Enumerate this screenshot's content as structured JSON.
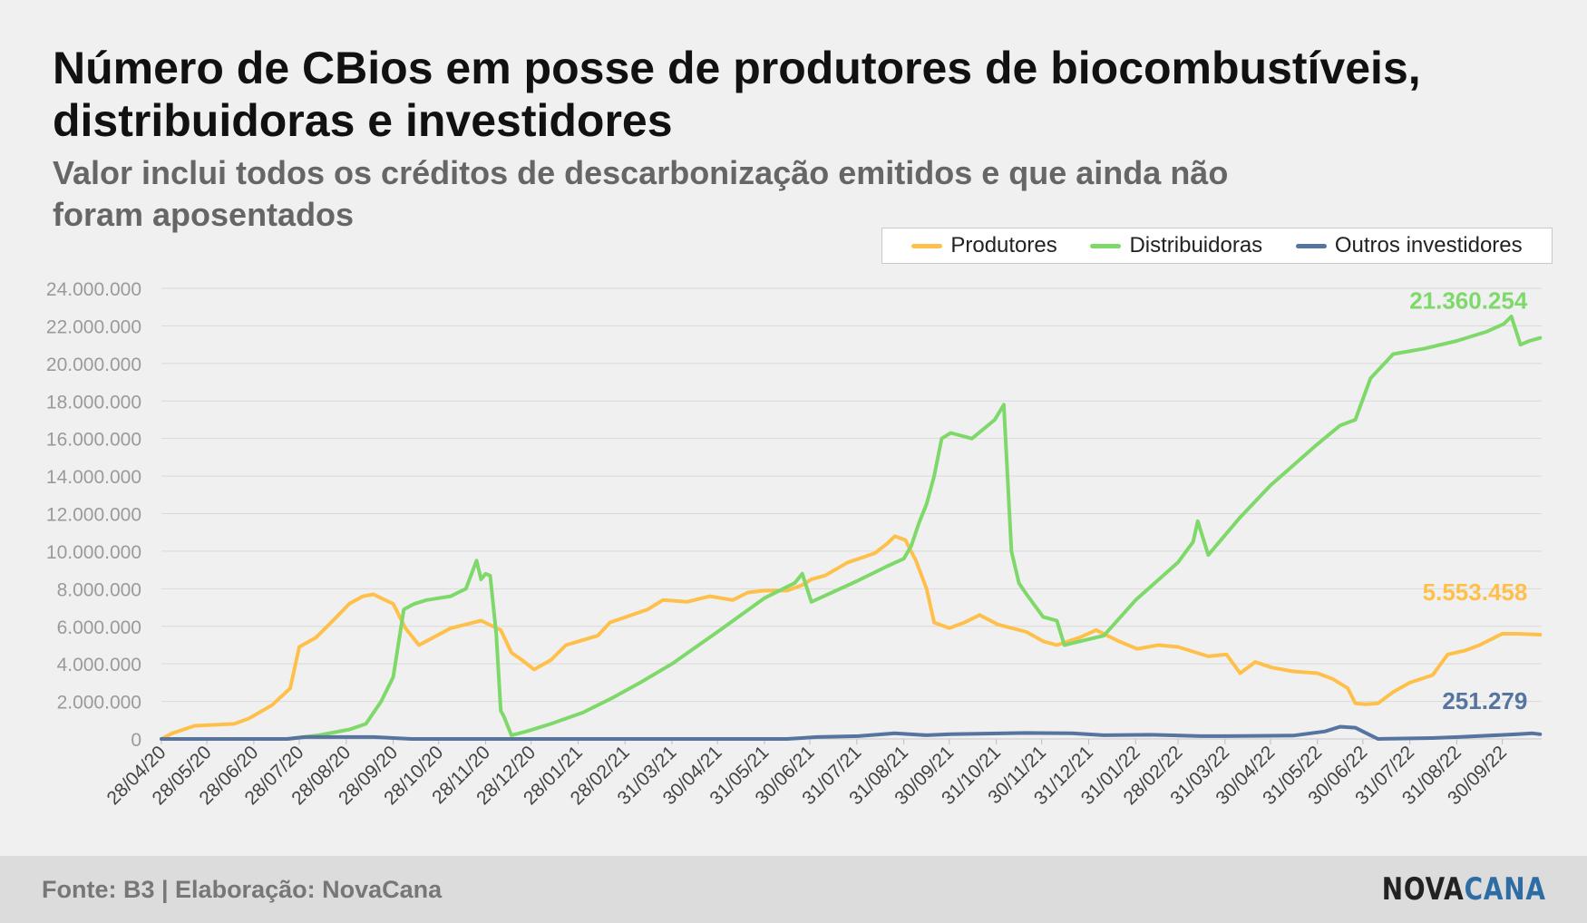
{
  "header": {
    "title": "Número de CBios em posse de produtores de biocombustíveis, distribuidoras e investidores",
    "subtitle": "Valor inclui todos os créditos de descarbonização emitidos e que ainda não foram aposentados"
  },
  "footer": {
    "source": "Fonte: B3 | Elaboração: NovaCana",
    "logo_part1": "NOVA",
    "logo_part2": "CANA"
  },
  "chart_data": {
    "type": "line",
    "title": "Número de CBios em posse de produtores de biocombustíveis, distribuidoras e investidores",
    "subtitle": "Valor inclui todos os créditos de descarbonização emitidos e que ainda não foram aposentados",
    "xlabel": "",
    "ylabel": "",
    "ylim": [
      0,
      24000000
    ],
    "yticks": [
      "0",
      "2.000.000",
      "4.000.000",
      "6.000.000",
      "8.000.000",
      "10.000.000",
      "12.000.000",
      "14.000.000",
      "16.000.000",
      "18.000.000",
      "20.000.000",
      "22.000.000",
      "24.000.000"
    ],
    "xlim": [
      "2020-04-28",
      "2022-10-26"
    ],
    "xticks": [
      "28/04/20",
      "28/05/20",
      "28/06/20",
      "28/07/20",
      "28/08/20",
      "28/09/20",
      "28/10/20",
      "28/11/20",
      "28/12/20",
      "28/01/21",
      "28/02/21",
      "31/03/21",
      "30/04/21",
      "31/05/21",
      "30/06/21",
      "31/07/21",
      "31/08/21",
      "30/09/21",
      "31/10/21",
      "30/11/21",
      "31/12/21",
      "31/01/22",
      "28/02/22",
      "31/03/22",
      "30/04/22",
      "31/05/22",
      "30/06/22",
      "31/07/22",
      "31/08/22",
      "30/09/22"
    ],
    "grid": true,
    "legend_position": "top-right",
    "series": [
      {
        "name": "Produtores",
        "color": "#ffc04b",
        "end_label": "5.553.458",
        "x": [
          "2020-04-28",
          "2020-05-05",
          "2020-05-20",
          "2020-06-15",
          "2020-06-25",
          "2020-07-10",
          "2020-07-22",
          "2020-07-28",
          "2020-08-08",
          "2020-08-18",
          "2020-08-30",
          "2020-09-08",
          "2020-09-15",
          "2020-09-20",
          "2020-09-28",
          "2020-10-06",
          "2020-10-15",
          "2020-11-05",
          "2020-11-15",
          "2020-11-25",
          "2020-12-08",
          "2020-12-15",
          "2020-12-22",
          "2020-12-30",
          "2021-01-10",
          "2021-01-20",
          "2021-02-10",
          "2021-02-18",
          "2021-03-15",
          "2021-03-25",
          "2021-04-10",
          "2021-04-25",
          "2021-05-10",
          "2021-05-20",
          "2021-05-31",
          "2021-06-15",
          "2021-06-25",
          "2021-07-01",
          "2021-07-10",
          "2021-07-25",
          "2021-08-05",
          "2021-08-12",
          "2021-08-20",
          "2021-08-25",
          "2021-09-01",
          "2021-09-08",
          "2021-09-15",
          "2021-09-20",
          "2021-09-30",
          "2021-10-10",
          "2021-10-20",
          "2021-11-01",
          "2021-11-20",
          "2021-12-01",
          "2021-12-10",
          "2021-12-25",
          "2022-01-05",
          "2022-01-20",
          "2022-02-01",
          "2022-02-15",
          "2022-02-28",
          "2022-03-20",
          "2022-04-01",
          "2022-04-10",
          "2022-04-20",
          "2022-05-01",
          "2022-05-15",
          "2022-05-31",
          "2022-06-10",
          "2022-06-20",
          "2022-06-25",
          "2022-07-02",
          "2022-07-10",
          "2022-07-20",
          "2022-07-31",
          "2022-08-15",
          "2022-08-25",
          "2022-09-05",
          "2022-09-15",
          "2022-09-30",
          "2022-10-10",
          "2022-10-25"
        ],
        "y": [
          0,
          300000,
          700000,
          800000,
          1100000,
          1800000,
          2700000,
          4900000,
          5400000,
          6200000,
          7200000,
          7600000,
          7700000,
          7500000,
          7200000,
          5900000,
          5000000,
          5900000,
          6100000,
          6300000,
          5800000,
          4600000,
          4200000,
          3700000,
          4200000,
          5000000,
          5500000,
          6200000,
          6900000,
          7400000,
          7300000,
          7600000,
          7400000,
          7800000,
          7900000,
          7900000,
          8200000,
          8500000,
          8700000,
          9400000,
          9700000,
          9900000,
          10400000,
          10800000,
          10600000,
          9500000,
          8000000,
          6200000,
          5900000,
          6200000,
          6600000,
          6100000,
          5700000,
          5200000,
          5000000,
          5400000,
          5800000,
          5200000,
          4800000,
          5000000,
          4900000,
          4400000,
          4500000,
          3500000,
          4100000,
          3800000,
          3600000,
          3500000,
          3200000,
          2700000,
          1900000,
          1850000,
          1900000,
          2500000,
          3000000,
          3400000,
          4500000,
          4700000,
          5000000,
          5600000,
          5600000,
          5553458
        ]
      },
      {
        "name": "Distribuidoras",
        "color": "#7ed96a",
        "end_label": "21.360.254",
        "x": [
          "2020-04-28",
          "2020-07-20",
          "2020-08-10",
          "2020-08-30",
          "2020-09-10",
          "2020-09-20",
          "2020-09-28",
          "2020-10-05",
          "2020-10-12",
          "2020-10-20",
          "2020-11-05",
          "2020-11-15",
          "2020-11-22",
          "2020-11-25",
          "2020-11-28",
          "2020-12-01",
          "2020-12-05",
          "2020-12-08",
          "2020-12-10",
          "2020-12-15",
          "2020-12-20",
          "2020-12-25",
          "2021-01-10",
          "2021-01-31",
          "2021-02-20",
          "2021-03-10",
          "2021-03-31",
          "2021-04-30",
          "2021-05-31",
          "2021-06-20",
          "2021-06-25",
          "2021-07-01",
          "2021-07-31",
          "2021-08-20",
          "2021-08-31",
          "2021-09-05",
          "2021-09-10",
          "2021-09-15",
          "2021-09-20",
          "2021-09-25",
          "2021-10-01",
          "2021-10-15",
          "2021-10-30",
          "2021-11-05",
          "2021-11-10",
          "2021-11-15",
          "2021-11-20",
          "2021-12-01",
          "2021-12-10",
          "2021-12-15",
          "2021-12-20",
          "2022-01-10",
          "2022-01-31",
          "2022-02-28",
          "2022-03-10",
          "2022-03-13",
          "2022-03-20",
          "2022-04-10",
          "2022-04-30",
          "2022-05-31",
          "2022-06-15",
          "2022-06-25",
          "2022-07-05",
          "2022-07-20",
          "2022-08-10",
          "2022-08-31",
          "2022-09-20",
          "2022-10-01",
          "2022-10-06",
          "2022-10-12",
          "2022-10-18",
          "2022-10-25"
        ],
        "y": [
          0,
          0,
          200000,
          500000,
          800000,
          2000000,
          3300000,
          6900000,
          7200000,
          7400000,
          7600000,
          8000000,
          9500000,
          8500000,
          8800000,
          8700000,
          5600000,
          1500000,
          1200000,
          200000,
          300000,
          400000,
          800000,
          1400000,
          2200000,
          3000000,
          4000000,
          5700000,
          7500000,
          8300000,
          8800000,
          7300000,
          8400000,
          9200000,
          9600000,
          10300000,
          11500000,
          12500000,
          14000000,
          16000000,
          16300000,
          16000000,
          17000000,
          17800000,
          10000000,
          8300000,
          7700000,
          6500000,
          6300000,
          5000000,
          5100000,
          5500000,
          7400000,
          9400000,
          10500000,
          11600000,
          9800000,
          11800000,
          13500000,
          15700000,
          16700000,
          17000000,
          19200000,
          20500000,
          20800000,
          21200000,
          21700000,
          22100000,
          22500000,
          21000000,
          21200000,
          21360254
        ]
      },
      {
        "name": "Outros investidores",
        "color": "#5574a0",
        "end_label": "251.279",
        "x": [
          "2020-04-28",
          "2020-07-20",
          "2020-08-01",
          "2020-09-15",
          "2020-10-10",
          "2021-06-15",
          "2021-07-05",
          "2021-08-01",
          "2021-08-25",
          "2021-09-15",
          "2021-10-01",
          "2021-11-20",
          "2021-12-20",
          "2022-01-10",
          "2022-02-10",
          "2022-03-15",
          "2022-04-01",
          "2022-05-15",
          "2022-06-05",
          "2022-06-15",
          "2022-06-25",
          "2022-07-05",
          "2022-07-10",
          "2022-08-15",
          "2022-09-01",
          "2022-10-10",
          "2022-10-20",
          "2022-10-25"
        ],
        "y": [
          0,
          0,
          100000,
          100000,
          0,
          0,
          100000,
          150000,
          300000,
          200000,
          250000,
          320000,
          300000,
          200000,
          220000,
          150000,
          150000,
          180000,
          400000,
          650000,
          600000,
          200000,
          0,
          50000,
          100000,
          250000,
          300000,
          251279
        ]
      }
    ]
  }
}
